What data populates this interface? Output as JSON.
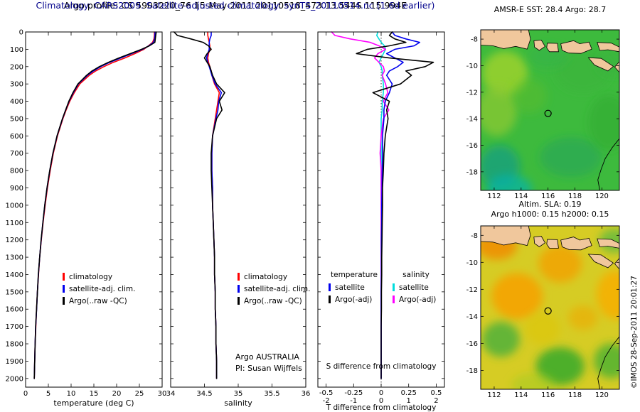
{
  "header": {
    "line1": "Argo profile: CS 5903220_76 15-May-2011 20110518_473 13.544S 115.994E",
    "line2": "Climatology: CARS2009. Satellite-adjusted climatology: synTS_20110514.nc (1.6d earlier)",
    "line2_color": "#00008b"
  },
  "credit": "©IMOS 28-Sep-2011 20:01:27",
  "depths": [
    0,
    20,
    40,
    60,
    80,
    100,
    125,
    150,
    175,
    200,
    225,
    250,
    300,
    350,
    400,
    450,
    500,
    600,
    700,
    800,
    900,
    1000,
    1100,
    1200,
    1300,
    1400,
    1500,
    1600,
    1700,
    1800,
    1900,
    2000
  ],
  "depth_ticks": [
    0,
    100,
    200,
    300,
    400,
    500,
    600,
    700,
    800,
    900,
    1000,
    1100,
    1200,
    1300,
    1400,
    1500,
    1600,
    1700,
    1800,
    1900,
    2000
  ],
  "depth_max": 2050,
  "coastline": {
    "land_color": "#f0c79c",
    "islands": [
      [
        [
          111,
          -7.3
        ],
        [
          114.55,
          -7.3
        ],
        [
          114.7,
          -8.0
        ],
        [
          114.45,
          -8.75
        ],
        [
          113.6,
          -8.55
        ],
        [
          112.7,
          -8.72
        ],
        [
          111.9,
          -8.5
        ],
        [
          111,
          -8.45
        ]
      ],
      [
        [
          114.95,
          -8.12
        ],
        [
          115.5,
          -8.07
        ],
        [
          115.78,
          -8.55
        ],
        [
          115.35,
          -8.85
        ],
        [
          115.0,
          -8.6
        ]
      ],
      [
        [
          115.95,
          -8.3
        ],
        [
          116.7,
          -8.32
        ],
        [
          116.78,
          -8.95
        ],
        [
          116.1,
          -8.95
        ],
        [
          115.9,
          -8.65
        ]
      ],
      [
        [
          116.95,
          -8.35
        ],
        [
          117.9,
          -8.12
        ],
        [
          118.35,
          -8.35
        ],
        [
          119.05,
          -8.22
        ],
        [
          119.25,
          -8.75
        ],
        [
          118.45,
          -9.08
        ],
        [
          117.55,
          -9.05
        ],
        [
          117.05,
          -8.85
        ]
      ],
      [
        [
          119.65,
          -8.25
        ],
        [
          120.7,
          -8.3
        ],
        [
          121.3,
          -8.6
        ],
        [
          121.3,
          -8.95
        ],
        [
          120.45,
          -8.8
        ],
        [
          119.85,
          -8.85
        ]
      ],
      [
        [
          119.0,
          -9.4
        ],
        [
          119.95,
          -9.45
        ],
        [
          120.85,
          -10.05
        ],
        [
          120.45,
          -10.4
        ],
        [
          119.45,
          -9.95
        ]
      ],
      [
        [
          121.3,
          -9.7
        ],
        [
          121.3,
          -10.5
        ],
        [
          120.95,
          -10.1
        ]
      ]
    ],
    "australia_coast": [
      [
        121.3,
        -15.5
      ],
      [
        120.75,
        -16.2
      ],
      [
        120.25,
        -17.0
      ],
      [
        119.95,
        -17.8
      ],
      [
        119.7,
        -18.6
      ],
      [
        119.85,
        -19.4
      ]
    ]
  },
  "chart_data": [
    {
      "id": "temperature_profile",
      "type": "line",
      "xlabel": "temperature (deg C)",
      "xlim": [
        0,
        30
      ],
      "xticks": [
        0,
        5,
        10,
        15,
        20,
        25,
        30
      ],
      "ylim": [
        0,
        2050
      ],
      "series": [
        {
          "name": "climatology",
          "color": "#ff0000",
          "values": [
            28.3,
            28.3,
            28.2,
            27.9,
            27.0,
            26.0,
            24.0,
            21.8,
            19.3,
            17.2,
            15.4,
            14.0,
            11.9,
            10.7,
            9.7,
            8.9,
            8.2,
            7.0,
            6.1,
            5.4,
            4.8,
            4.3,
            3.85,
            3.45,
            3.1,
            2.85,
            2.6,
            2.4,
            2.25,
            2.1,
            2.0,
            1.9
          ]
        },
        {
          "name": "satellite-adj. clim.",
          "color": "#0000ee",
          "values": [
            28.45,
            28.4,
            28.35,
            28.1,
            27.1,
            25.7,
            23.3,
            20.9,
            18.5,
            16.5,
            14.9,
            13.6,
            11.6,
            10.5,
            9.55,
            8.82,
            8.12,
            6.92,
            6.02,
            5.32,
            4.72,
            4.22,
            3.8,
            3.42,
            3.1,
            2.82,
            2.6,
            2.42,
            2.22,
            2.1,
            2.0,
            1.9
          ]
        },
        {
          "name": "Argo(..raw -QC)",
          "color": "#000000",
          "values": [
            28.7,
            28.6,
            28.5,
            28.4,
            27.2,
            25.5,
            23.0,
            20.5,
            18.2,
            16.2,
            14.6,
            13.4,
            11.5,
            10.4,
            9.5,
            8.8,
            8.1,
            6.9,
            6.0,
            5.3,
            4.7,
            4.2,
            3.8,
            3.4,
            3.1,
            2.8,
            2.6,
            2.4,
            2.2,
            2.1,
            2.0,
            1.9
          ]
        }
      ]
    },
    {
      "id": "salinity_profile",
      "type": "line",
      "xlabel": "salinity",
      "xlim": [
        34,
        36
      ],
      "xticks": [
        34,
        34.5,
        35,
        35.5,
        36
      ],
      "ylim": [
        0,
        2050
      ],
      "annotations": [
        "Argo AUSTRALIA",
        "PI: Susan Wijffels"
      ],
      "series": [
        {
          "name": "climatology",
          "color": "#ff0000",
          "values": [
            34.55,
            34.55,
            34.56,
            34.57,
            34.58,
            34.58,
            34.56,
            34.55,
            34.56,
            34.58,
            34.6,
            34.61,
            34.65,
            34.72,
            34.7,
            34.68,
            34.66,
            34.62,
            34.61,
            34.61,
            34.62,
            34.62,
            34.63,
            34.64,
            34.65,
            34.65,
            34.66,
            34.66,
            34.67,
            34.67,
            34.68,
            34.68
          ]
        },
        {
          "name": "satellite-adj. clim.",
          "color": "#0000ee",
          "values": [
            34.6,
            34.6,
            34.58,
            34.57,
            34.57,
            34.57,
            34.55,
            34.53,
            34.55,
            34.57,
            34.59,
            34.61,
            34.66,
            34.75,
            34.71,
            34.7,
            34.67,
            34.62,
            34.61,
            34.61,
            34.62,
            34.62,
            34.63,
            34.64,
            34.65,
            34.65,
            34.66,
            34.66,
            34.67,
            34.67,
            34.68,
            34.68
          ]
        },
        {
          "name": "Argo(..raw -QC)",
          "color": "#000000",
          "values": [
            34.05,
            34.1,
            34.3,
            34.48,
            34.56,
            34.6,
            34.54,
            34.5,
            34.54,
            34.58,
            34.6,
            34.62,
            34.68,
            34.8,
            34.72,
            34.76,
            34.68,
            34.62,
            34.6,
            34.6,
            34.61,
            34.62,
            34.63,
            34.64,
            34.65,
            34.65,
            34.66,
            34.66,
            34.67,
            34.67,
            34.68,
            34.68
          ]
        }
      ]
    },
    {
      "id": "difference_profile",
      "type": "line",
      "xlabel": "T difference from climatology",
      "inner_label": "S difference from climatology",
      "xlim_T": [
        -2.3,
        2.3
      ],
      "xticks_T": [
        -2,
        -1,
        0,
        1,
        2
      ],
      "xlim_S": [
        -0.575,
        0.575
      ],
      "xticks_S": [
        -0.5,
        -0.25,
        0,
        0.25,
        0.5
      ],
      "legend": {
        "col1": "temperature",
        "col2": "salinity"
      },
      "series": [
        {
          "name": "satellite",
          "group": "salinity",
          "scale": "S",
          "color": "#00dddd",
          "values": [
            -0.03,
            -0.04,
            -0.02,
            0.0,
            0.03,
            0.04,
            0.02,
            0.0,
            -0.02,
            0.0,
            0.01,
            0.01,
            0.02,
            0.02,
            0.01,
            0.01,
            0.0,
            0.0,
            0.0,
            0.0,
            0.0,
            0.0,
            0.0,
            0.0,
            0.0,
            0.0,
            0.0,
            0.0,
            0.0,
            0.0,
            0.0,
            0.0
          ]
        },
        {
          "name": "Argo(-adj)",
          "group": "salinity",
          "scale": "S",
          "color": "#ff00ff",
          "values": [
            -0.45,
            -0.42,
            -0.28,
            -0.1,
            -0.02,
            0.04,
            -0.03,
            -0.06,
            -0.02,
            0.02,
            0.03,
            0.01,
            0.04,
            0.06,
            0.02,
            0.07,
            0.02,
            0.0,
            -0.01,
            0.0,
            0.0,
            0.0,
            0.0,
            0.0,
            0.0,
            0.0,
            0.0,
            0.0,
            0.0,
            0.0,
            0.0,
            0.0
          ]
        },
        {
          "name": "satellite",
          "group": "temperature",
          "scale": "T",
          "color": "#0000ee",
          "values": [
            0.4,
            0.5,
            0.9,
            1.4,
            1.2,
            0.5,
            0.2,
            0.5,
            0.8,
            0.6,
            0.3,
            0.2,
            0.4,
            0.3,
            0.15,
            0.1,
            0.1,
            0.05,
            0.05,
            0.04,
            0.03,
            0.02,
            0.02,
            0.01,
            0.01,
            0.01,
            0.0,
            0.0,
            0.0,
            0.0,
            0.0,
            0.0
          ]
        },
        {
          "name": "Argo(-adj)",
          "group": "temperature",
          "scale": "T",
          "color": "#000000",
          "values": [
            0.4,
            0.3,
            0.5,
            0.9,
            0.3,
            -0.5,
            -0.9,
            0.3,
            1.9,
            1.6,
            0.9,
            1.1,
            0.7,
            -0.3,
            0.3,
            0.2,
            0.25,
            0.15,
            0.1,
            0.08,
            0.05,
            0.05,
            0.04,
            0.03,
            0.02,
            0.02,
            0.01,
            0.01,
            0.0,
            0.0,
            0.0,
            0.0
          ]
        }
      ]
    },
    {
      "id": "sst_map",
      "type": "heatmap",
      "title": "AMSR-E SST: 28.4 Argo: 28.7",
      "lon_ticks": [
        112,
        114,
        116,
        118,
        120
      ],
      "lat_ticks": [
        -8,
        -10,
        -12,
        -14,
        -16,
        -18
      ],
      "lon_range": [
        111,
        121.3
      ],
      "lat_range": [
        -7.3,
        -19.4
      ],
      "marker": {
        "lon": 116,
        "lat": -13.6
      },
      "ocean_color": "#3dba3d",
      "blobs": [
        [
          112.8,
          -10.6,
          1.7,
          1.7,
          "#a2d32c",
          0.8
        ],
        [
          112.2,
          -13.4,
          1.5,
          1.9,
          "#8cc832",
          0.75
        ],
        [
          114.6,
          -12.3,
          1.3,
          1.3,
          "#5cbe2e",
          0.5
        ],
        [
          112.4,
          -17.6,
          1.5,
          1.6,
          "#0c9c86",
          0.7
        ],
        [
          113.1,
          -19.3,
          1.7,
          1.1,
          "#00b2b2",
          0.65
        ],
        [
          117.7,
          -16.9,
          2.3,
          1.5,
          "#23a05f",
          0.5
        ],
        [
          120.5,
          -14.3,
          1.5,
          2.1,
          "#2ea62e",
          0.45
        ],
        [
          118.6,
          -10.4,
          2.1,
          1.6,
          "#3bb23b",
          0.45
        ],
        [
          116.0,
          -9.3,
          1.5,
          0.9,
          "#2fae4d",
          0.4
        ],
        [
          120.8,
          -9.8,
          1.2,
          1.0,
          "#35b03c",
          0.4
        ]
      ]
    },
    {
      "id": "sla_map",
      "type": "heatmap",
      "title1": "Altim. SLA: 0.19",
      "title2": "Argo h1000: 0.15 h2000: 0.15",
      "lon_ticks": [
        112,
        114,
        116,
        118,
        120
      ],
      "lat_ticks": [
        -8,
        -10,
        -12,
        -14,
        -16,
        -18
      ],
      "lon_range": [
        111,
        121.3
      ],
      "lat_range": [
        -7.3,
        -19.4
      ],
      "marker": {
        "lon": 116,
        "lat": -13.6
      },
      "ocean_color": "#d6cc24",
      "blobs": [
        [
          112.2,
          -8.8,
          1.5,
          1.0,
          "#f08c00",
          0.85
        ],
        [
          113.7,
          -12.5,
          1.9,
          1.7,
          "#f5a300",
          0.9
        ],
        [
          116.9,
          -10.1,
          1.6,
          1.4,
          "#f2a000",
          0.8
        ],
        [
          121.0,
          -12.4,
          1.4,
          1.8,
          "#f7ae00",
          0.85
        ],
        [
          118.6,
          -14.1,
          1.1,
          0.9,
          "#eea800",
          0.6
        ],
        [
          112.5,
          -15.7,
          1.4,
          1.3,
          "#3fae3f",
          0.75
        ],
        [
          116.9,
          -17.7,
          1.8,
          1.4,
          "#2ca82c",
          0.8
        ],
        [
          120.7,
          -17.3,
          1.3,
          1.3,
          "#35ad35",
          0.7
        ],
        [
          120.9,
          -8.4,
          1.1,
          0.9,
          "#46b646",
          0.65
        ],
        [
          114.9,
          -19.1,
          1.6,
          0.9,
          "#a0cc20",
          0.5
        ],
        [
          115.6,
          -14.9,
          1.3,
          1.2,
          "#e0c400",
          0.5
        ]
      ]
    }
  ]
}
